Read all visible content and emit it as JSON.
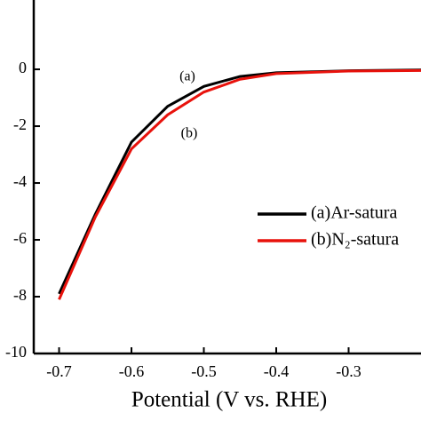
{
  "chart_data": {
    "type": "line",
    "x_label": "Potential (V vs. RHE)",
    "x": [
      -0.7,
      -0.65,
      -0.6,
      -0.55,
      -0.5,
      -0.45,
      -0.4,
      -0.3,
      -0.2
    ],
    "series": [
      {
        "name": "(a)Ar-satura",
        "color": "#000000",
        "values": [
          -7.9,
          -5.1,
          -2.56,
          -1.3,
          -0.6,
          -0.25,
          -0.12,
          -0.05,
          -0.02
        ]
      },
      {
        "name": "(b)N₂-satura",
        "color": "#e8120c",
        "values": [
          -8.1,
          -5.2,
          -2.8,
          -1.6,
          -0.8,
          -0.35,
          -0.15,
          -0.06,
          -0.04
        ]
      }
    ],
    "annotations": [
      "(a)",
      "(b)"
    ],
    "xlim": [
      -0.735,
      -0.2
    ],
    "xticks": [
      -0.7,
      -0.6,
      -0.5,
      -0.4,
      -0.3
    ],
    "ylim": [
      -10,
      2.44
    ],
    "yticks": [
      0,
      -2,
      -4,
      -6,
      -8,
      -10
    ]
  }
}
